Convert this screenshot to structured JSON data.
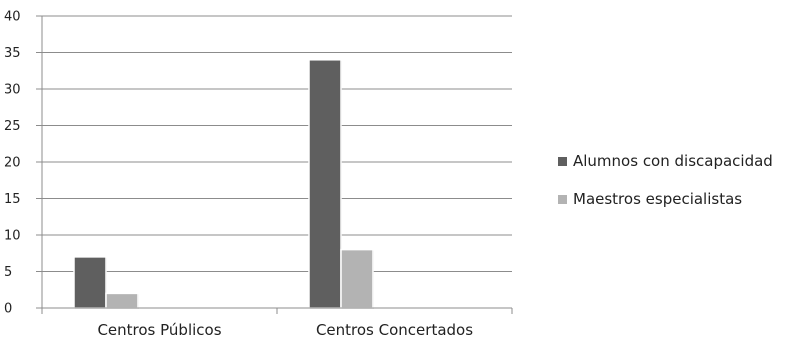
{
  "chart_data": {
    "type": "bar",
    "categories": [
      "Centros Públicos",
      "Centros Concertados"
    ],
    "series": [
      {
        "name": "Alumnos con discapacidad",
        "values": [
          7,
          34
        ],
        "color": "#5f5f5f"
      },
      {
        "name": "Maestros especialistas",
        "values": [
          2,
          8
        ],
        "color": "#b3b3b3"
      }
    ],
    "ylim": [
      0,
      40
    ],
    "yticks": [
      0,
      5,
      10,
      15,
      20,
      25,
      30,
      35,
      40
    ],
    "ytick_labels": [
      "0",
      "5",
      "10",
      "15",
      "20",
      "25",
      "30",
      "35",
      "40"
    ],
    "grid": true,
    "legend_position": "right"
  }
}
